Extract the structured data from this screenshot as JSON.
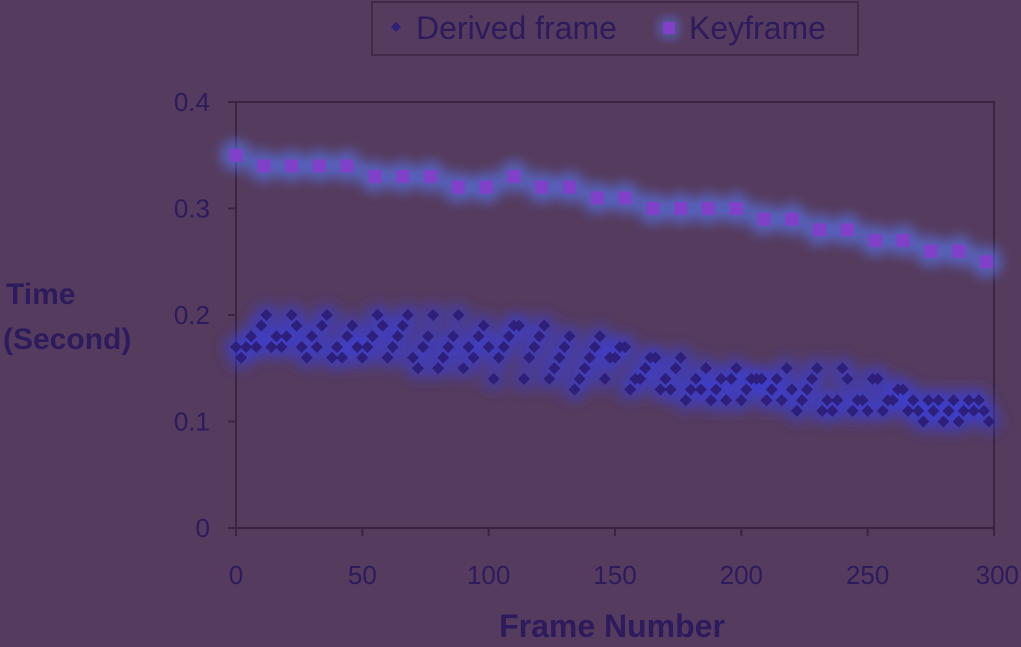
{
  "chart_data": {
    "type": "scatter",
    "xlabel": "Frame Number",
    "ylabel": "Time (Second)",
    "ylabel_lines": [
      "Time",
      "(Second)"
    ],
    "xlim": [
      0,
      300
    ],
    "ylim": [
      0,
      0.4
    ],
    "x_ticks": [
      0,
      50,
      100,
      150,
      200,
      250,
      300
    ],
    "y_ticks": [
      0,
      0.1,
      0.2,
      0.3,
      0.4
    ],
    "x_tick_labels": [
      "0",
      "50",
      "100",
      "150",
      "200",
      "250",
      "300"
    ],
    "y_tick_labels": [
      "0",
      "0.1",
      "0.2",
      "0.3",
      "0.4"
    ],
    "grid": false,
    "legend_position": "top-center",
    "series": [
      {
        "name": "Derived frame",
        "marker": "diamond",
        "color": "#2d1f7a",
        "glow_color": "#3a3de0",
        "points": [
          [
            0,
            0.17
          ],
          [
            2,
            0.16
          ],
          [
            4,
            0.17
          ],
          [
            6,
            0.18
          ],
          [
            8,
            0.17
          ],
          [
            10,
            0.19
          ],
          [
            12,
            0.2
          ],
          [
            14,
            0.17
          ],
          [
            16,
            0.18
          ],
          [
            18,
            0.17
          ],
          [
            20,
            0.18
          ],
          [
            22,
            0.2
          ],
          [
            24,
            0.19
          ],
          [
            26,
            0.17
          ],
          [
            28,
            0.16
          ],
          [
            30,
            0.18
          ],
          [
            32,
            0.17
          ],
          [
            34,
            0.19
          ],
          [
            36,
            0.2
          ],
          [
            38,
            0.16
          ],
          [
            40,
            0.17
          ],
          [
            42,
            0.16
          ],
          [
            44,
            0.18
          ],
          [
            46,
            0.19
          ],
          [
            48,
            0.17
          ],
          [
            50,
            0.16
          ],
          [
            52,
            0.17
          ],
          [
            54,
            0.18
          ],
          [
            56,
            0.2
          ],
          [
            58,
            0.19
          ],
          [
            60,
            0.16
          ],
          [
            62,
            0.17
          ],
          [
            64,
            0.18
          ],
          [
            66,
            0.19
          ],
          [
            68,
            0.2
          ],
          [
            70,
            0.16
          ],
          [
            72,
            0.15
          ],
          [
            74,
            0.17
          ],
          [
            76,
            0.18
          ],
          [
            78,
            0.2
          ],
          [
            80,
            0.15
          ],
          [
            82,
            0.16
          ],
          [
            84,
            0.17
          ],
          [
            86,
            0.18
          ],
          [
            88,
            0.2
          ],
          [
            90,
            0.15
          ],
          [
            92,
            0.17
          ],
          [
            94,
            0.16
          ],
          [
            96,
            0.18
          ],
          [
            98,
            0.19
          ],
          [
            100,
            0.17
          ],
          [
            102,
            0.14
          ],
          [
            104,
            0.16
          ],
          [
            106,
            0.17
          ],
          [
            108,
            0.18
          ],
          [
            110,
            0.19
          ],
          [
            112,
            0.19
          ],
          [
            114,
            0.14
          ],
          [
            116,
            0.16
          ],
          [
            118,
            0.17
          ],
          [
            120,
            0.18
          ],
          [
            122,
            0.19
          ],
          [
            124,
            0.14
          ],
          [
            126,
            0.15
          ],
          [
            128,
            0.16
          ],
          [
            130,
            0.17
          ],
          [
            132,
            0.18
          ],
          [
            134,
            0.13
          ],
          [
            136,
            0.14
          ],
          [
            138,
            0.15
          ],
          [
            140,
            0.16
          ],
          [
            142,
            0.17
          ],
          [
            144,
            0.18
          ],
          [
            146,
            0.14
          ],
          [
            148,
            0.16
          ],
          [
            150,
            0.16
          ],
          [
            152,
            0.17
          ],
          [
            154,
            0.17
          ],
          [
            156,
            0.13
          ],
          [
            158,
            0.14
          ],
          [
            160,
            0.14
          ],
          [
            162,
            0.15
          ],
          [
            164,
            0.16
          ],
          [
            166,
            0.16
          ],
          [
            168,
            0.13
          ],
          [
            170,
            0.14
          ],
          [
            172,
            0.13
          ],
          [
            174,
            0.15
          ],
          [
            176,
            0.16
          ],
          [
            178,
            0.12
          ],
          [
            180,
            0.13
          ],
          [
            182,
            0.14
          ],
          [
            184,
            0.13
          ],
          [
            186,
            0.15
          ],
          [
            188,
            0.12
          ],
          [
            190,
            0.13
          ],
          [
            192,
            0.14
          ],
          [
            194,
            0.12
          ],
          [
            196,
            0.14
          ],
          [
            198,
            0.15
          ],
          [
            200,
            0.12
          ],
          [
            202,
            0.13
          ],
          [
            204,
            0.14
          ],
          [
            206,
            0.14
          ],
          [
            208,
            0.14
          ],
          [
            210,
            0.12
          ],
          [
            212,
            0.13
          ],
          [
            214,
            0.14
          ],
          [
            216,
            0.12
          ],
          [
            218,
            0.15
          ],
          [
            220,
            0.13
          ],
          [
            222,
            0.11
          ],
          [
            224,
            0.12
          ],
          [
            226,
            0.13
          ],
          [
            228,
            0.14
          ],
          [
            230,
            0.15
          ],
          [
            232,
            0.11
          ],
          [
            234,
            0.12
          ],
          [
            236,
            0.11
          ],
          [
            238,
            0.12
          ],
          [
            240,
            0.15
          ],
          [
            242,
            0.14
          ],
          [
            244,
            0.11
          ],
          [
            246,
            0.12
          ],
          [
            248,
            0.12
          ],
          [
            250,
            0.11
          ],
          [
            252,
            0.14
          ],
          [
            254,
            0.14
          ],
          [
            256,
            0.11
          ],
          [
            258,
            0.12
          ],
          [
            260,
            0.12
          ],
          [
            262,
            0.13
          ],
          [
            264,
            0.13
          ],
          [
            266,
            0.11
          ],
          [
            268,
            0.12
          ],
          [
            270,
            0.11
          ],
          [
            272,
            0.1
          ],
          [
            274,
            0.12
          ],
          [
            276,
            0.11
          ],
          [
            278,
            0.12
          ],
          [
            280,
            0.1
          ],
          [
            282,
            0.11
          ],
          [
            284,
            0.12
          ],
          [
            286,
            0.1
          ],
          [
            288,
            0.11
          ],
          [
            290,
            0.12
          ],
          [
            292,
            0.11
          ],
          [
            294,
            0.12
          ],
          [
            296,
            0.11
          ],
          [
            298,
            0.1
          ]
        ]
      },
      {
        "name": "Keyframe",
        "marker": "square",
        "color": "#8040c8",
        "glow_color": "#5a7cff",
        "points": [
          [
            0,
            0.35
          ],
          [
            11,
            0.34
          ],
          [
            22,
            0.34
          ],
          [
            33,
            0.34
          ],
          [
            44,
            0.34
          ],
          [
            55,
            0.33
          ],
          [
            66,
            0.33
          ],
          [
            77,
            0.33
          ],
          [
            88,
            0.32
          ],
          [
            99,
            0.32
          ],
          [
            110,
            0.33
          ],
          [
            121,
            0.32
          ],
          [
            132,
            0.32
          ],
          [
            143,
            0.31
          ],
          [
            154,
            0.31
          ],
          [
            165,
            0.3
          ],
          [
            176,
            0.3
          ],
          [
            187,
            0.3
          ],
          [
            198,
            0.3
          ],
          [
            209,
            0.29
          ],
          [
            220,
            0.29
          ],
          [
            231,
            0.28
          ],
          [
            242,
            0.28
          ],
          [
            253,
            0.27
          ],
          [
            264,
            0.27
          ],
          [
            275,
            0.26
          ],
          [
            286,
            0.26
          ],
          [
            297,
            0.25
          ]
        ]
      }
    ]
  }
}
